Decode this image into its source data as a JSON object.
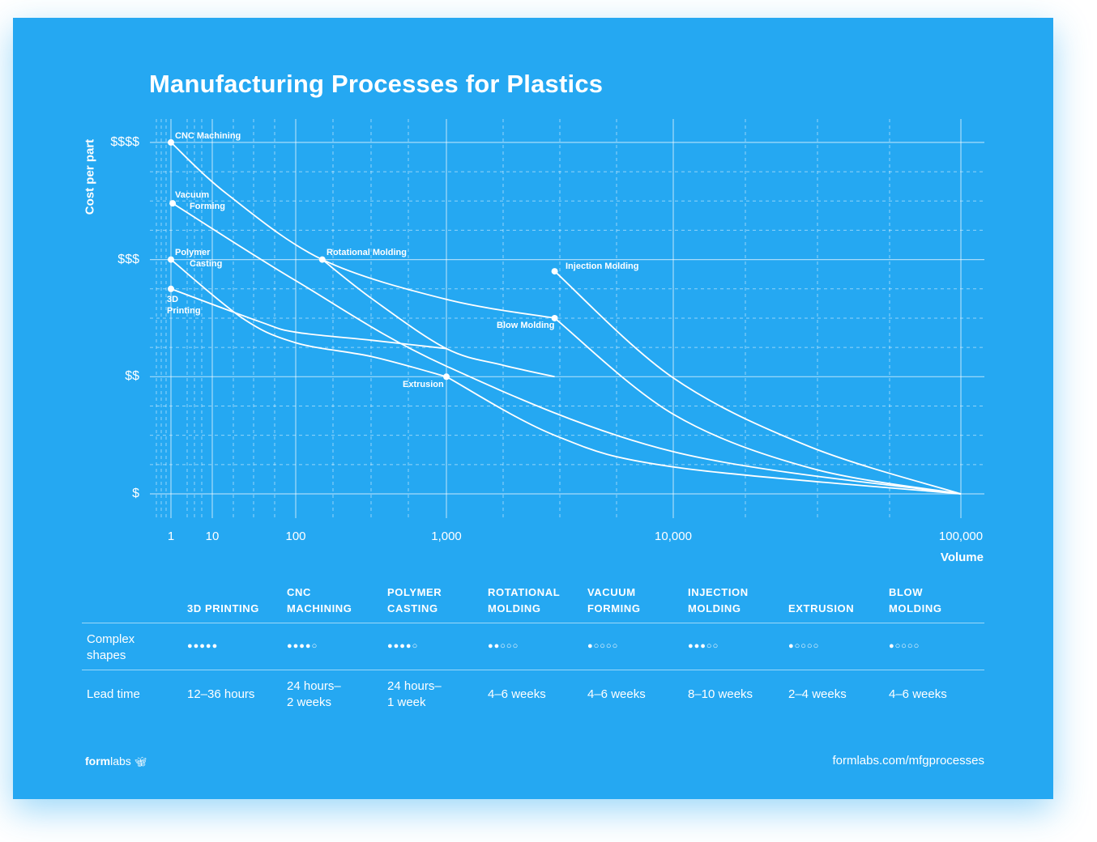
{
  "title": "Manufacturing Processes for Plastics",
  "chart_data": {
    "type": "line",
    "title": "Manufacturing Processes for Plastics",
    "xlabel": "Volume",
    "ylabel": "Cost per part",
    "x_scale": "log",
    "x_ticks": [
      "1",
      "10",
      "100",
      "1,000",
      "10,000",
      "100,000"
    ],
    "x_tick_values": [
      1,
      10,
      100,
      1000,
      10000,
      100000
    ],
    "y_ticks": [
      "$",
      "$$",
      "$$$",
      "$$$$"
    ],
    "y_tick_values": [
      1,
      2,
      3,
      4
    ],
    "xlim": [
      1,
      100000
    ],
    "ylim": [
      1,
      4
    ],
    "grid": true,
    "line_color": "#ffffff",
    "background_color": "#25a8f2",
    "series": [
      {
        "label_lines": [
          "CNC Machining"
        ],
        "points": [
          [
            1,
            4
          ],
          [
            15,
            3.56
          ],
          [
            150,
            3
          ],
          [
            1000,
            2.66
          ],
          [
            3000,
            2.5
          ]
        ]
      },
      {
        "label_lines": [
          "Vacuum",
          "Forming"
        ],
        "points": [
          [
            1.1,
            3.48
          ],
          [
            100,
            2.82
          ],
          [
            1000,
            2.09
          ],
          [
            10000,
            1.36
          ],
          [
            100000,
            1
          ]
        ]
      },
      {
        "label_lines": [
          "Polymer",
          "Casting"
        ],
        "points": [
          [
            1,
            3
          ],
          [
            23,
            2.5
          ],
          [
            100,
            2.29
          ],
          [
            325,
            2.17
          ],
          [
            1000,
            2
          ]
        ]
      },
      {
        "label_lines": [
          "3D",
          "Printing"
        ],
        "points": [
          [
            1,
            2.75
          ],
          [
            37,
            2.47
          ],
          [
            100,
            2.38
          ],
          [
            325,
            2.31
          ],
          [
            1000,
            2.24
          ]
        ]
      },
      {
        "label_lines": [
          "Rotational Molding"
        ],
        "points": [
          [
            150,
            3
          ],
          [
            325,
            2.66
          ],
          [
            1000,
            2.24
          ],
          [
            1764,
            2.1
          ],
          [
            3000,
            2
          ]
        ]
      },
      {
        "label_lines": [
          "Injection Molding"
        ],
        "points": [
          [
            3000,
            2.9
          ],
          [
            10000,
            1.99
          ],
          [
            30000,
            1.4
          ],
          [
            100000,
            1
          ]
        ]
      },
      {
        "label_lines": [
          "Blow Molding"
        ],
        "points": [
          [
            3000,
            2.5
          ],
          [
            10000,
            1.68
          ],
          [
            30000,
            1.22
          ],
          [
            100000,
            1
          ]
        ]
      },
      {
        "label_lines": [
          "Extrusion"
        ],
        "points": [
          [
            1000,
            2
          ],
          [
            3000,
            1.5
          ],
          [
            10000,
            1.23
          ],
          [
            100000,
            1
          ]
        ]
      }
    ]
  },
  "table": {
    "columns": [
      [
        "3D PRINTING"
      ],
      [
        "CNC",
        "MACHINING"
      ],
      [
        "POLYMER",
        "CASTING"
      ],
      [
        "ROTATIONAL",
        "MOLDING"
      ],
      [
        "VACUUM",
        "FORMING"
      ],
      [
        "INJECTION",
        "MOLDING"
      ],
      [
        "EXTRUSION"
      ],
      [
        "BLOW",
        "MOLDING"
      ]
    ],
    "rows": [
      {
        "label": [
          "Complex",
          "shapes"
        ],
        "rating_max": 5,
        "ratings": [
          5,
          4,
          4,
          2,
          1,
          3,
          1,
          1
        ]
      },
      {
        "label": [
          "Lead time"
        ],
        "values": [
          [
            "12–36 hours"
          ],
          [
            "24 hours–",
            "2 weeks"
          ],
          [
            "24 hours–",
            "1 week"
          ],
          [
            "4–6 weeks"
          ],
          [
            "4–6 weeks"
          ],
          [
            "8–10 weeks"
          ],
          [
            "2–4 weeks"
          ],
          [
            "4–6 weeks"
          ]
        ]
      }
    ]
  },
  "footer": {
    "logo_bold": "form",
    "logo_light": "labs",
    "url": "formlabs.com/mfgprocesses"
  }
}
